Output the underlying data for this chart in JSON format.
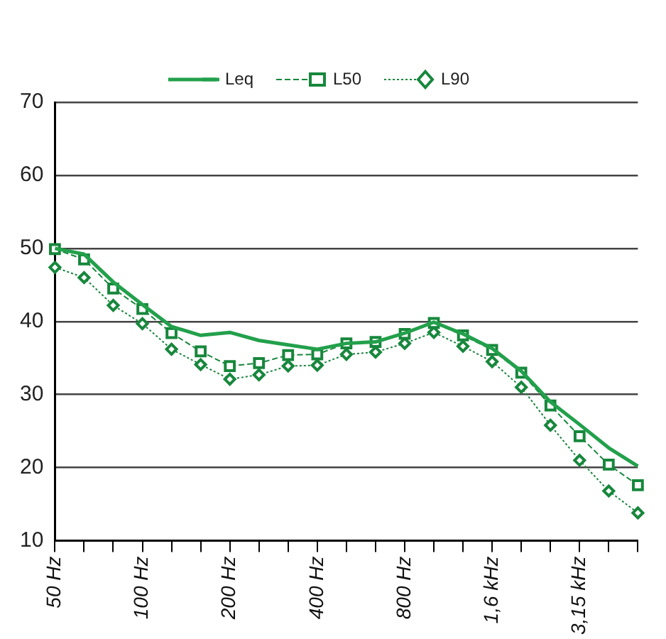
{
  "chart_data": {
    "type": "line",
    "categories": [
      "50 Hz",
      null,
      null,
      "100 Hz",
      null,
      null,
      "200 Hz",
      null,
      null,
      "400 Hz",
      null,
      null,
      "800 Hz",
      null,
      null,
      "1,6 kHz",
      null,
      null,
      "3,15 kHz",
      null,
      null
    ],
    "series": [
      {
        "name": "Leq",
        "color": "#22a04b",
        "marker": "none",
        "line_style": "solid",
        "values": [
          50.0,
          49.2,
          45.4,
          42.3,
          39.3,
          38.1,
          38.5,
          37.4,
          36.8,
          36.2,
          37.0,
          37.2,
          38.4,
          39.9,
          38.3,
          36.3,
          33.2,
          29.0,
          25.9,
          22.7,
          20.2
        ]
      },
      {
        "name": "L50",
        "color": "#17873c",
        "marker": "square",
        "line_style": "dashed",
        "values": [
          49.9,
          48.5,
          44.5,
          41.7,
          38.4,
          35.9,
          33.9,
          34.3,
          35.4,
          35.5,
          37.0,
          37.2,
          38.3,
          39.8,
          38.1,
          36.1,
          33.0,
          28.5,
          24.3,
          20.4,
          17.6
        ]
      },
      {
        "name": "L90",
        "color": "#17873c",
        "marker": "diamond",
        "line_style": "dotted",
        "values": [
          47.4,
          46.0,
          42.2,
          39.7,
          36.2,
          34.1,
          32.1,
          32.7,
          33.9,
          34.0,
          35.5,
          35.8,
          37.0,
          38.5,
          36.6,
          34.5,
          31.0,
          25.8,
          21.0,
          16.8,
          13.8
        ]
      }
    ],
    "ylim": [
      10,
      70
    ],
    "yticks": [
      10,
      20,
      30,
      40,
      50,
      60,
      70
    ],
    "grid": "y",
    "legend": "top"
  }
}
